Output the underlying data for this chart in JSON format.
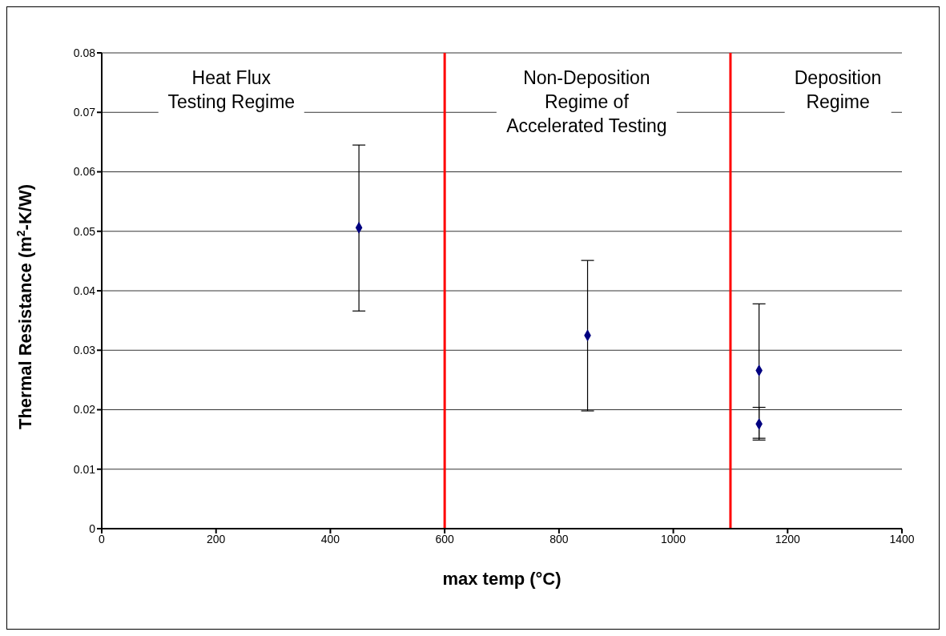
{
  "chart_data": {
    "type": "scatter",
    "xlabel": "max temp (°C)",
    "ylabel": "Thermal Resistance (m$^{2}$-K/W)",
    "x": [
      450,
      850,
      1150,
      1150
    ],
    "series": [
      {
        "color": "#000080",
        "values": [
          0.0506,
          0.0325,
          0.0266,
          0.0176
        ],
        "errors": [
          [
            0.0366,
            0.0645
          ],
          [
            0.0198,
            0.0451
          ],
          [
            0.0152,
            0.0378
          ],
          [
            0.0149,
            0.0204
          ]
        ]
      }
    ],
    "xlim": [
      0,
      1400
    ],
    "xticks": [
      0,
      200,
      400,
      600,
      800,
      1000,
      1200,
      1400
    ],
    "ylim": [
      0,
      0.08
    ],
    "yticks": [
      0,
      0.01,
      0.02,
      0.03,
      0.04,
      0.05,
      0.06,
      0.07,
      0.08
    ],
    "grid": "y",
    "legend": false,
    "marker": "diamond",
    "ref_lines": [
      {
        "axis": "x",
        "value": 600,
        "color": "#ff0000"
      },
      {
        "axis": "x",
        "value": 1100,
        "color": "#ff0000"
      }
    ],
    "annotations": [
      "Heat Flux\nTesting Regime",
      "Non-Deposition\nRegime of\nAccelerated Testing",
      "Deposition\nRegime"
    ]
  }
}
